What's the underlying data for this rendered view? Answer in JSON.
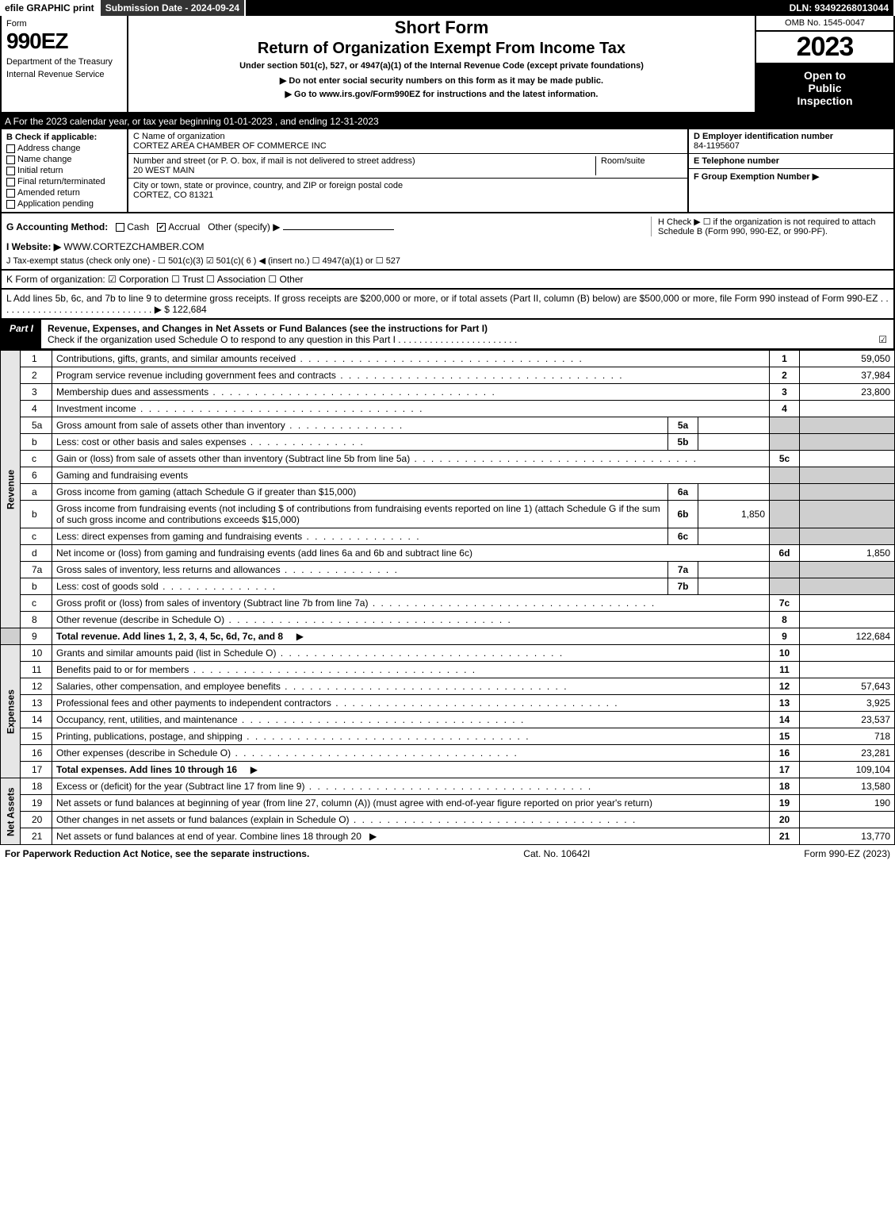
{
  "topbar": {
    "efile": "efile GRAPHIC print",
    "subdate": "Submission Date - 2024-09-24",
    "dln": "DLN: 93492268013044"
  },
  "header": {
    "form_word": "Form",
    "form_num": "990EZ",
    "dept1": "Department of the Treasury",
    "dept2": "Internal Revenue Service",
    "title1": "Short Form",
    "title2": "Return of Organization Exempt From Income Tax",
    "subtitle": "Under section 501(c), 527, or 4947(a)(1) of the Internal Revenue Code (except private foundations)",
    "warn": "▶ Do not enter social security numbers on this form as it may be made public.",
    "goto": "▶ Go to www.irs.gov/Form990EZ for instructions and the latest information.",
    "omb": "OMB No. 1545-0047",
    "year": "2023",
    "open1": "Open to",
    "open2": "Public",
    "open3": "Inspection"
  },
  "A": "A  For the 2023 calendar year, or tax year beginning 01-01-2023 , and ending 12-31-2023",
  "B": {
    "label": "B  Check if applicable:",
    "opts": [
      "Address change",
      "Name change",
      "Initial return",
      "Final return/terminated",
      "Amended return",
      "Application pending"
    ]
  },
  "C": {
    "name_lbl": "C Name of organization",
    "name": "CORTEZ AREA CHAMBER OF COMMERCE INC",
    "street_lbl": "Number and street (or P. O. box, if mail is not delivered to street address)",
    "street": "20 WEST MAIN",
    "room_lbl": "Room/suite",
    "city_lbl": "City or town, state or province, country, and ZIP or foreign postal code",
    "city": "CORTEZ, CO  81321"
  },
  "DEF": {
    "d_lbl": "D Employer identification number",
    "d_val": "84-1195607",
    "e_lbl": "E Telephone number",
    "f_lbl": "F Group Exemption Number   ▶"
  },
  "G": {
    "label": "G Accounting Method:",
    "cash": "Cash",
    "accrual": "Accrual",
    "other": "Other (specify) ▶"
  },
  "H": "H   Check ▶  ☐  if the organization is not required to attach Schedule B (Form 990, 990-EZ, or 990-PF).",
  "I": {
    "label": "I Website: ▶",
    "val": "WWW.CORTEZCHAMBER.COM"
  },
  "J": "J Tax-exempt status (check only one) -  ☐ 501(c)(3)  ☑ 501(c)( 6 ) ◀ (insert no.)  ☐ 4947(a)(1) or  ☐ 527",
  "K": "K Form of organization:   ☑ Corporation   ☐ Trust   ☐ Association   ☐ Other",
  "L": {
    "text": "L Add lines 5b, 6c, and 7b to line 9 to determine gross receipts. If gross receipts are $200,000 or more, or if total assets (Part II, column (B) below) are $500,000 or more, file Form 990 instead of Form 990-EZ . . . . . . . . . . . . . . . . . . . . . . . . . . . . . .  ▶ $",
    "val": "122,684"
  },
  "part1": {
    "tag": "Part I",
    "title": "Revenue, Expenses, and Changes in Net Assets or Fund Balances (see the instructions for Part I)",
    "sub": "Check if the organization used Schedule O to respond to any question in this Part I . . . . . . . . . . . . . . . . . . . . . . .",
    "checked": "☑"
  },
  "sections": {
    "revenue": "Revenue",
    "expenses": "Expenses",
    "netassets": "Net Assets"
  },
  "lines": {
    "l1": {
      "n": "1",
      "d": "Contributions, gifts, grants, and similar amounts received",
      "box": "1",
      "amt": "59,050"
    },
    "l2": {
      "n": "2",
      "d": "Program service revenue including government fees and contracts",
      "box": "2",
      "amt": "37,984"
    },
    "l3": {
      "n": "3",
      "d": "Membership dues and assessments",
      "box": "3",
      "amt": "23,800"
    },
    "l4": {
      "n": "4",
      "d": "Investment income",
      "box": "4",
      "amt": ""
    },
    "l5a": {
      "n": "5a",
      "d": "Gross amount from sale of assets other than inventory",
      "box5": "5a",
      "amt5": ""
    },
    "l5b": {
      "n": "b",
      "d": "Less: cost or other basis and sales expenses",
      "box5": "5b",
      "amt5": ""
    },
    "l5c": {
      "n": "c",
      "d": "Gain or (loss) from sale of assets other than inventory (Subtract line 5b from line 5a)",
      "box": "5c",
      "amt": ""
    },
    "l6": {
      "n": "6",
      "d": "Gaming and fundraising events"
    },
    "l6a": {
      "n": "a",
      "d": "Gross income from gaming (attach Schedule G if greater than $15,000)",
      "box5": "6a",
      "amt5": ""
    },
    "l6b": {
      "n": "b",
      "d": "Gross income from fundraising events (not including $                    of contributions from fundraising events reported on line 1) (attach Schedule G if the sum of such gross income and contributions exceeds $15,000)",
      "box5": "6b",
      "amt5": "1,850"
    },
    "l6c": {
      "n": "c",
      "d": "Less: direct expenses from gaming and fundraising events",
      "box5": "6c",
      "amt5": ""
    },
    "l6d": {
      "n": "d",
      "d": "Net income or (loss) from gaming and fundraising events (add lines 6a and 6b and subtract line 6c)",
      "box": "6d",
      "amt": "1,850"
    },
    "l7a": {
      "n": "7a",
      "d": "Gross sales of inventory, less returns and allowances",
      "box5": "7a",
      "amt5": ""
    },
    "l7b": {
      "n": "b",
      "d": "Less: cost of goods sold",
      "box5": "7b",
      "amt5": ""
    },
    "l7c": {
      "n": "c",
      "d": "Gross profit or (loss) from sales of inventory (Subtract line 7b from line 7a)",
      "box": "7c",
      "amt": ""
    },
    "l8": {
      "n": "8",
      "d": "Other revenue (describe in Schedule O)",
      "box": "8",
      "amt": ""
    },
    "l9": {
      "n": "9",
      "d": "Total revenue. Add lines 1, 2, 3, 4, 5c, 6d, 7c, and 8",
      "box": "9",
      "amt": "122,684",
      "arrow": "▶"
    },
    "l10": {
      "n": "10",
      "d": "Grants and similar amounts paid (list in Schedule O)",
      "box": "10",
      "amt": ""
    },
    "l11": {
      "n": "11",
      "d": "Benefits paid to or for members",
      "box": "11",
      "amt": ""
    },
    "l12": {
      "n": "12",
      "d": "Salaries, other compensation, and employee benefits",
      "box": "12",
      "amt": "57,643"
    },
    "l13": {
      "n": "13",
      "d": "Professional fees and other payments to independent contractors",
      "box": "13",
      "amt": "3,925"
    },
    "l14": {
      "n": "14",
      "d": "Occupancy, rent, utilities, and maintenance",
      "box": "14",
      "amt": "23,537"
    },
    "l15": {
      "n": "15",
      "d": "Printing, publications, postage, and shipping",
      "box": "15",
      "amt": "718"
    },
    "l16": {
      "n": "16",
      "d": "Other expenses (describe in Schedule O)",
      "box": "16",
      "amt": "23,281"
    },
    "l17": {
      "n": "17",
      "d": "Total expenses. Add lines 10 through 16",
      "box": "17",
      "amt": "109,104",
      "arrow": "▶"
    },
    "l18": {
      "n": "18",
      "d": "Excess or (deficit) for the year (Subtract line 17 from line 9)",
      "box": "18",
      "amt": "13,580"
    },
    "l19": {
      "n": "19",
      "d": "Net assets or fund balances at beginning of year (from line 27, column (A)) (must agree with end-of-year figure reported on prior year's return)",
      "box": "19",
      "amt": "190"
    },
    "l20": {
      "n": "20",
      "d": "Other changes in net assets or fund balances (explain in Schedule O)",
      "box": "20",
      "amt": ""
    },
    "l21": {
      "n": "21",
      "d": "Net assets or fund balances at end of year. Combine lines 18 through 20",
      "box": "21",
      "amt": "13,770",
      "arrow": "▶"
    }
  },
  "footer": {
    "left": "For Paperwork Reduction Act Notice, see the separate instructions.",
    "mid": "Cat. No. 10642I",
    "right": "Form 990-EZ (2023)"
  }
}
